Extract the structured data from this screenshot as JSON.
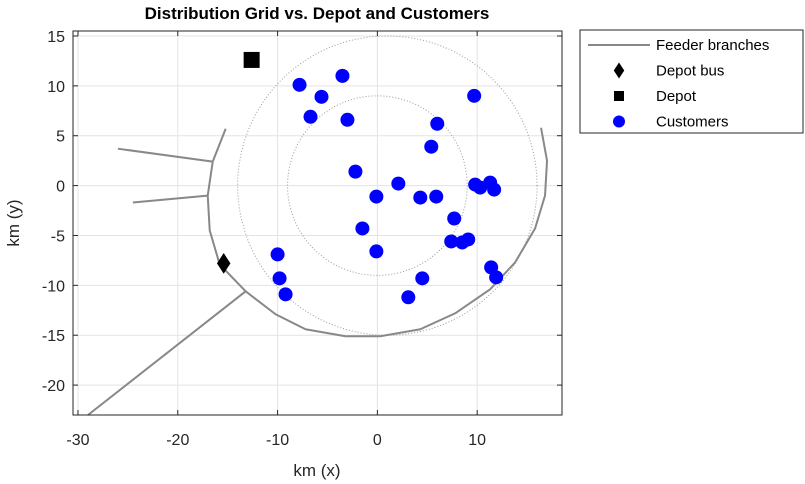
{
  "chart_data": {
    "type": "scatter",
    "title": "Distribution Grid vs. Depot and Customers",
    "xlabel": "km (x)",
    "ylabel": "km (y)",
    "xlim": [
      -30.5,
      18.5
    ],
    "ylim": [
      -23,
      15.5
    ],
    "xticks": [
      -30,
      -20,
      -10,
      0,
      10
    ],
    "yticks": [
      15,
      10,
      5,
      0,
      -5,
      -10,
      -15,
      -20
    ],
    "grid": true,
    "legend_position": "outside-top-right",
    "circles": [
      {
        "cx": 1,
        "cy": 0,
        "r": 15,
        "style": "dotted",
        "color": "#999999"
      },
      {
        "cx": 0,
        "cy": 0,
        "r": 9,
        "style": "dotted",
        "color": "#999999"
      }
    ],
    "series": [
      {
        "name": "Feeder branches",
        "kind": "lines",
        "color": "#888888",
        "paths": [
          [
            [
              -15.2,
              5.7
            ],
            [
              -16.5,
              2.4
            ],
            [
              -17,
              -1
            ],
            [
              -16.8,
              -4.5
            ],
            [
              -15.8,
              -7.9
            ],
            [
              -13.2,
              -10.6
            ],
            [
              -10.2,
              -12.9
            ],
            [
              -7.2,
              -14.4
            ],
            [
              -3.2,
              -15.1
            ],
            [
              0.3,
              -15.1
            ],
            [
              4.3,
              -14.4
            ],
            [
              7.8,
              -12.8
            ],
            [
              11.3,
              -10.4
            ],
            [
              13.8,
              -7.7
            ],
            [
              15.8,
              -4.3
            ],
            [
              16.8,
              -1
            ],
            [
              17,
              2.5
            ],
            [
              16.4,
              5.8
            ]
          ],
          [
            [
              -16.5,
              2.4
            ],
            [
              -26,
              3.7
            ]
          ],
          [
            [
              -17,
              -1
            ],
            [
              -24.5,
              -1.7
            ]
          ],
          [
            [
              -13.2,
              -10.6
            ],
            [
              -29,
              -23
            ]
          ]
        ]
      },
      {
        "name": "Depot bus",
        "kind": "marker",
        "marker": "diamond",
        "color": "#000000",
        "points": [
          [
            -15.4,
            -7.8
          ]
        ]
      },
      {
        "name": "Depot",
        "kind": "marker",
        "marker": "square",
        "color": "#000000",
        "points": [
          [
            -12.6,
            12.6
          ]
        ]
      },
      {
        "name": "Customers",
        "kind": "marker",
        "marker": "circle",
        "color": "#0000ff",
        "points": [
          [
            -7.8,
            10.1
          ],
          [
            -5.6,
            8.9
          ],
          [
            -3.5,
            11
          ],
          [
            -6.7,
            6.9
          ],
          [
            -3,
            6.6
          ],
          [
            9.7,
            9
          ],
          [
            6,
            6.2
          ],
          [
            5.4,
            3.9
          ],
          [
            -2.2,
            1.4
          ],
          [
            2.1,
            0.2
          ],
          [
            -0.1,
            -1.1
          ],
          [
            4.3,
            -1.2
          ],
          [
            5.9,
            -1.1
          ],
          [
            9.8,
            0.1
          ],
          [
            10.3,
            -0.2
          ],
          [
            11.3,
            0.3
          ],
          [
            11.7,
            -0.4
          ],
          [
            7.7,
            -3.3
          ],
          [
            -1.5,
            -4.3
          ],
          [
            7.4,
            -5.6
          ],
          [
            8.5,
            -5.7
          ],
          [
            9.1,
            -5.4
          ],
          [
            -0.1,
            -6.6
          ],
          [
            -10,
            -6.9
          ],
          [
            11.4,
            -8.2
          ],
          [
            11.9,
            -9.2
          ],
          [
            -9.8,
            -9.3
          ],
          [
            4.5,
            -9.3
          ],
          [
            -9.2,
            -10.9
          ],
          [
            3.1,
            -11.2
          ]
        ]
      }
    ]
  }
}
